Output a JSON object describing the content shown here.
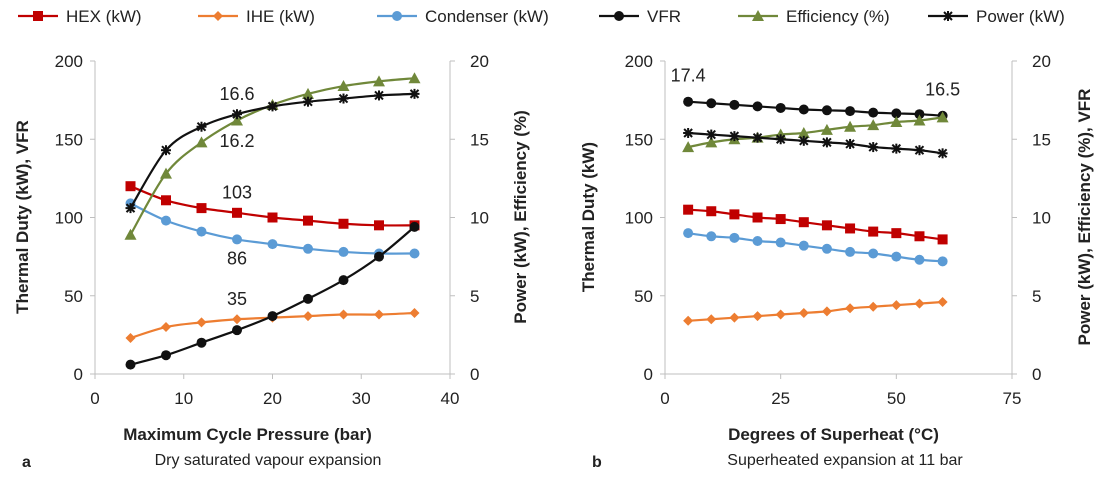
{
  "colors": {
    "hex": "#c00000",
    "ihe": "#ed7d31",
    "condenser": "#5b9bd5",
    "vfr": "#111111",
    "efficiency": "#70883a",
    "power": "#111111"
  },
  "legend": [
    {
      "key": "hex",
      "label": "HEX (kW)",
      "marker": "square"
    },
    {
      "key": "ihe",
      "label": "IHE (kW)",
      "marker": "diamond"
    },
    {
      "key": "condenser",
      "label": "Condenser (kW)",
      "marker": "circle"
    },
    {
      "key": "vfr",
      "label": "VFR",
      "marker": "circle"
    },
    {
      "key": "efficiency",
      "label": "Efficiency (%)",
      "marker": "triangle"
    },
    {
      "key": "power",
      "label": "Power (kW)",
      "marker": "star"
    }
  ],
  "chart_data": [
    {
      "type": "line",
      "panel_label": "a",
      "xlabel": "Maximum  Cycle Pressure (bar)",
      "subtitle": "Dry saturated vapour  expansion",
      "ylabel_left": "Thermal Duty (kW), VFR",
      "ylabel_right": "Power (kW), Efficiency (%)",
      "xlim": [
        0,
        40
      ],
      "ylim_left": [
        0,
        200
      ],
      "ylim_right": [
        0,
        20
      ],
      "xticks": [
        "0",
        "10",
        "20",
        "30",
        "40"
      ],
      "yticks_left": [
        "0",
        "50",
        "100",
        "150",
        "200"
      ],
      "yticks_right": [
        "0",
        "5",
        "10",
        "15",
        "20"
      ],
      "x": [
        4,
        8,
        12,
        16,
        20,
        24,
        28,
        32,
        36
      ],
      "series": [
        {
          "key": "hex",
          "axis": "left",
          "values": [
            120,
            111,
            106,
            103,
            100,
            98,
            96,
            95,
            95
          ]
        },
        {
          "key": "ihe",
          "axis": "left",
          "values": [
            23,
            30,
            33,
            35,
            36,
            37,
            38,
            38,
            39
          ]
        },
        {
          "key": "condenser",
          "axis": "left",
          "values": [
            109,
            98,
            91,
            86,
            83,
            80,
            78,
            77,
            77
          ]
        },
        {
          "key": "vfr",
          "axis": "left",
          "values": [
            6,
            12,
            20,
            28,
            37,
            48,
            60,
            75,
            94
          ]
        },
        {
          "key": "efficiency",
          "axis": "right",
          "values": [
            8.9,
            12.8,
            14.8,
            16.2,
            17.2,
            17.9,
            18.4,
            18.7,
            18.9
          ]
        },
        {
          "key": "power",
          "axis": "right",
          "values": [
            10.6,
            14.3,
            15.8,
            16.6,
            17.1,
            17.4,
            17.6,
            17.8,
            17.9
          ]
        }
      ],
      "annotations": [
        {
          "text": "16.6",
          "x": 16,
          "axis": "right",
          "y": 17.5
        },
        {
          "text": "16.2",
          "x": 16,
          "axis": "right",
          "y": 14.5
        },
        {
          "text": "103",
          "x": 16,
          "axis": "left",
          "y": 112
        },
        {
          "text": "86",
          "x": 16,
          "axis": "left",
          "y": 70
        },
        {
          "text": "35",
          "x": 16,
          "axis": "left",
          "y": 44
        }
      ]
    },
    {
      "type": "line",
      "panel_label": "b",
      "xlabel": "Degrees of Superheat  (°C)",
      "subtitle": "Superheated expansion  at 11 bar",
      "ylabel_left": "Thermal Duty (kW)",
      "ylabel_right": "Power (kW), Efficiency (%), VFR",
      "xlim": [
        0,
        75
      ],
      "ylim_left": [
        0,
        200
      ],
      "ylim_right": [
        0,
        20
      ],
      "xticks": [
        "0",
        "25",
        "50",
        "75"
      ],
      "yticks_left": [
        "0",
        "50",
        "100",
        "150",
        "200"
      ],
      "yticks_right": [
        "0",
        "5",
        "10",
        "15",
        "20"
      ],
      "x": [
        5,
        10,
        15,
        20,
        25,
        30,
        35,
        40,
        45,
        50,
        55,
        60
      ],
      "series": [
        {
          "key": "hex",
          "axis": "left",
          "values": [
            105,
            104,
            102,
            100,
            99,
            97,
            95,
            93,
            91,
            90,
            88,
            86
          ]
        },
        {
          "key": "ihe",
          "axis": "left",
          "values": [
            34,
            35,
            36,
            37,
            38,
            39,
            40,
            42,
            43,
            44,
            45,
            46
          ]
        },
        {
          "key": "condenser",
          "axis": "left",
          "values": [
            90,
            88,
            87,
            85,
            84,
            82,
            80,
            78,
            77,
            75,
            73,
            72
          ]
        },
        {
          "key": "vfr",
          "axis": "right",
          "values": [
            17.4,
            17.3,
            17.2,
            17.1,
            17.0,
            16.9,
            16.85,
            16.8,
            16.7,
            16.65,
            16.6,
            16.5
          ]
        },
        {
          "key": "efficiency",
          "axis": "right",
          "values": [
            14.5,
            14.8,
            15.0,
            15.1,
            15.3,
            15.4,
            15.6,
            15.8,
            15.9,
            16.1,
            16.2,
            16.4
          ]
        },
        {
          "key": "power",
          "axis": "right",
          "values": [
            15.4,
            15.3,
            15.2,
            15.1,
            15.0,
            14.9,
            14.8,
            14.7,
            14.5,
            14.4,
            14.3,
            14.1
          ]
        }
      ],
      "annotations": [
        {
          "text": "17.4",
          "x": 5,
          "axis": "right",
          "y": 18.7
        },
        {
          "text": "16.5",
          "x": 60,
          "axis": "right",
          "y": 17.8
        }
      ]
    }
  ]
}
